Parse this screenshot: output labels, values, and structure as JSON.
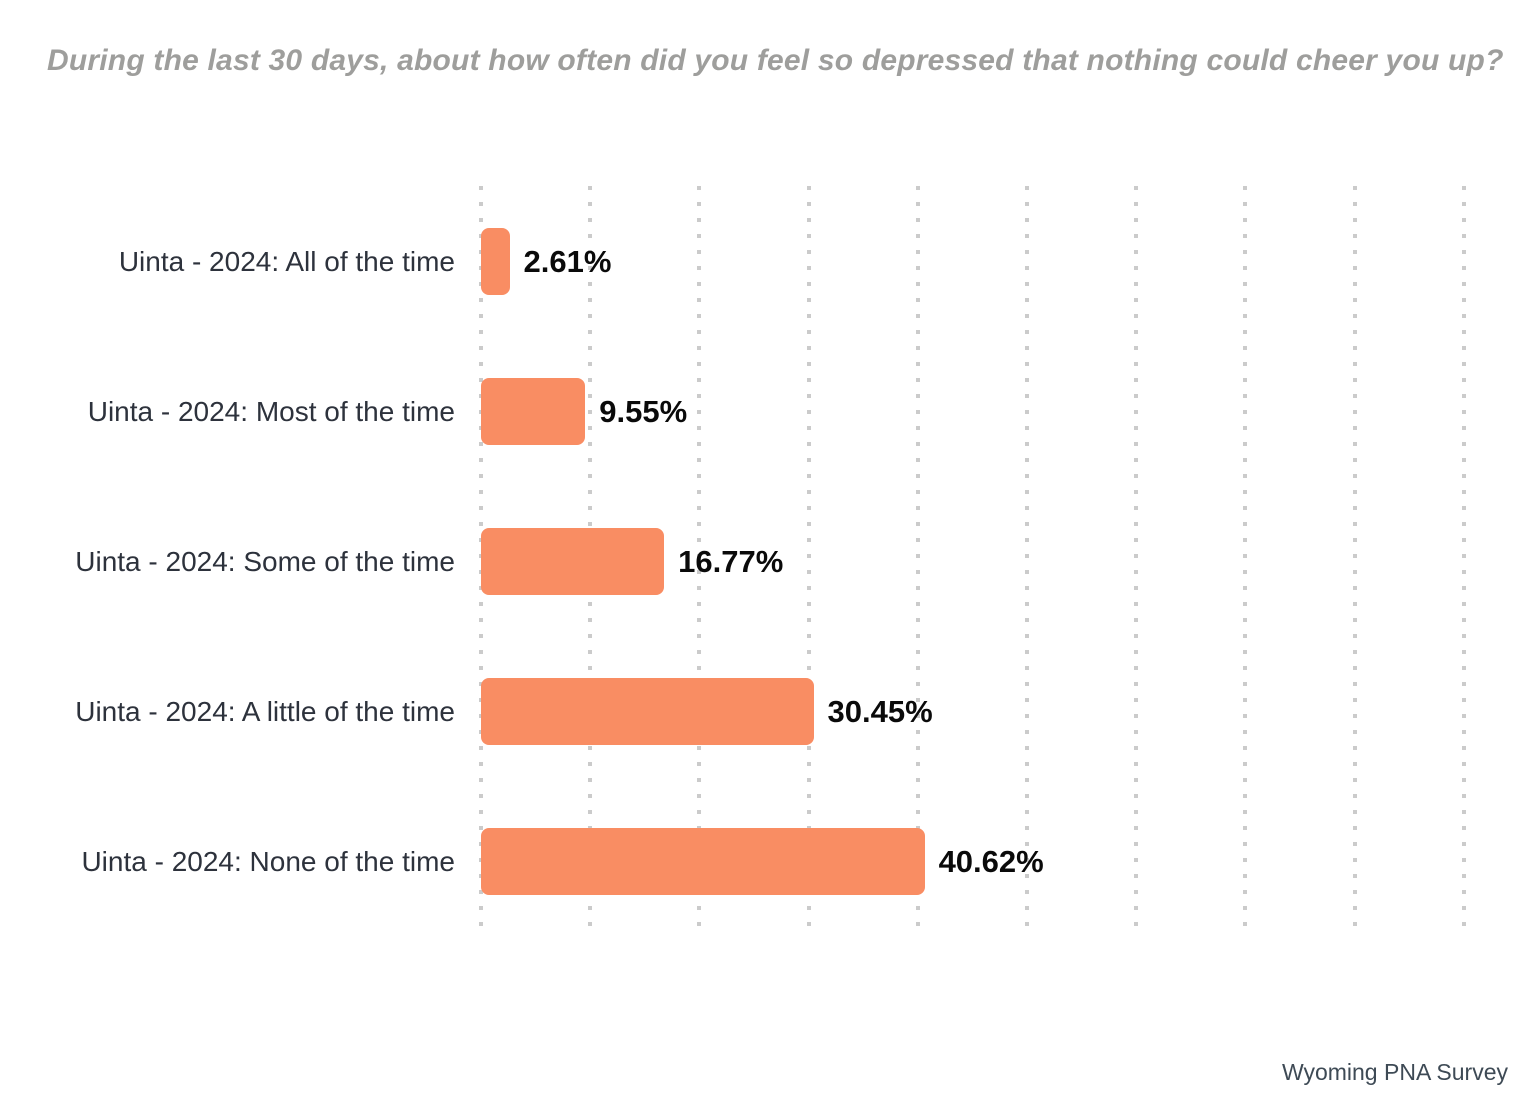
{
  "page": {
    "footer": "Wyoming PNA Survey"
  },
  "colors": {
    "background": "#ffffff",
    "bar": "#f98d63",
    "title": "#9e9e9c",
    "label": "#2d323c",
    "value": "#0a0a0a",
    "grid_dot": "#cbcbcb",
    "footer": "#3e4a55"
  },
  "chart_data": {
    "type": "bar",
    "orientation": "horizontal",
    "title": "During the last 30 days, about how often did you feel so depressed that nothing could cheer you up?",
    "categories": [
      "Uinta - 2024: All of the time",
      "Uinta - 2024: Most of the time",
      "Uinta - 2024: Some of the time",
      "Uinta - 2024: A little of the time",
      "Uinta - 2024: None of the time"
    ],
    "values": [
      2.61,
      9.55,
      16.77,
      30.45,
      40.62
    ],
    "value_labels": [
      "2.61%",
      "9.55%",
      "16.77%",
      "30.45%",
      "40.62%"
    ],
    "xlabel": "",
    "ylabel": "",
    "xlim": [
      0,
      90
    ],
    "gridline_step": 10,
    "grid": "dotted-vertical",
    "legend": "none",
    "source": "Wyoming PNA Survey"
  }
}
